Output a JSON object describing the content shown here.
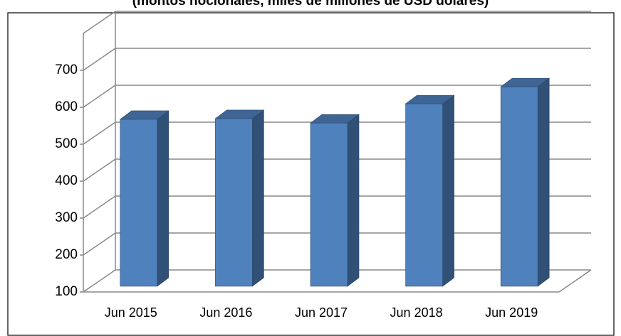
{
  "chart_data": {
    "type": "bar3d",
    "title": "(montos nocionales, miles de millones de USD dólares)",
    "categories": [
      "Jun 2015",
      "Jun 2016",
      "Jun 2017",
      "Jun 2018",
      "Jun 2019"
    ],
    "values": [
      552,
      554,
      542,
      594,
      640
    ],
    "color": "#4f81bd",
    "ylim": [
      100,
      800
    ],
    "yticks": [
      100,
      200,
      300,
      400,
      500,
      600,
      700
    ],
    "grid": true
  }
}
